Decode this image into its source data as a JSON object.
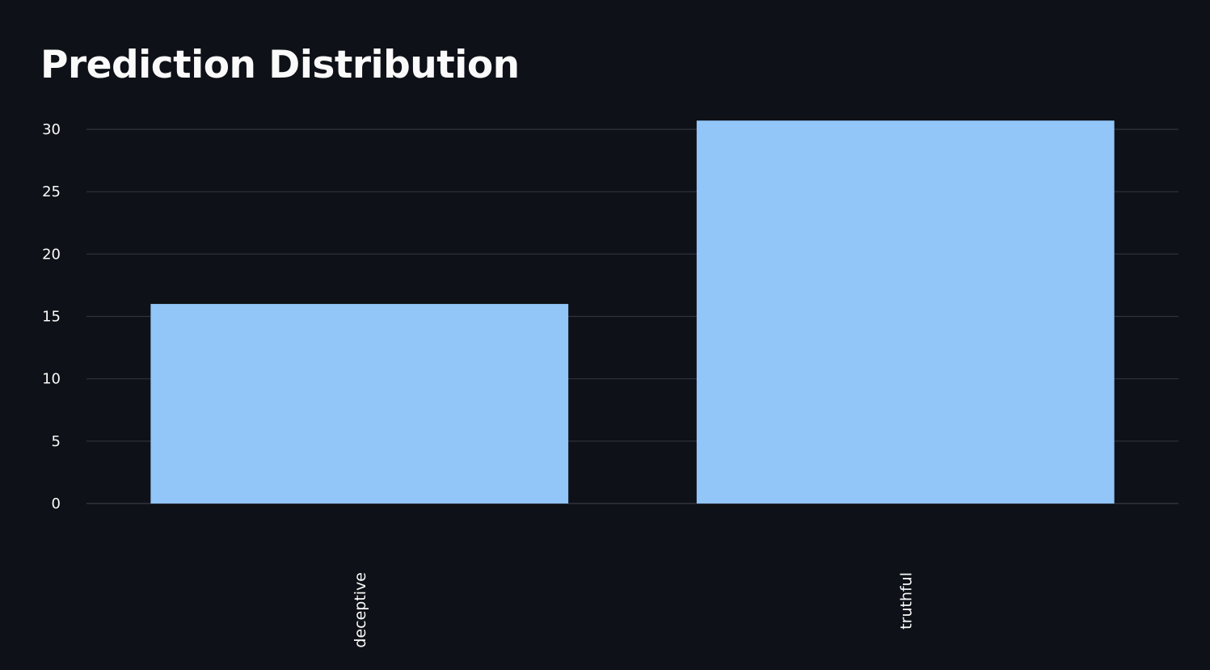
{
  "page": {
    "title": "Prediction Distribution"
  },
  "chart_data": {
    "type": "bar",
    "categories": [
      "deceptive",
      "truthful"
    ],
    "values": [
      16,
      30.7
    ],
    "xlabel": "",
    "ylabel": "",
    "ylim": [
      0,
      31
    ],
    "yticks": [
      0,
      5,
      10,
      15,
      20,
      25,
      30
    ],
    "grid": true,
    "legend": "none",
    "bar_color": "#92c5f8",
    "grid_color": "#31333f",
    "text_color": "#fafafa",
    "background_color": "#0e1117"
  }
}
